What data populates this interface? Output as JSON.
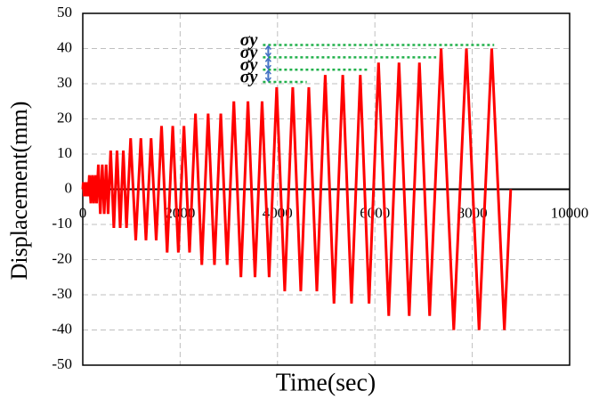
{
  "chart_data": {
    "type": "line",
    "x_label": "Time(sec)",
    "y_label": "Displacement(mm)",
    "x": [
      0,
      10,
      30,
      50,
      70,
      90,
      110,
      135,
      165,
      195,
      225,
      255,
      285,
      320,
      360,
      400,
      440,
      480,
      520,
      573,
      638,
      703,
      768,
      833,
      898,
      983,
      1088,
      1193,
      1298,
      1403,
      1508,
      1618,
      1733,
      1848,
      1963,
      2078,
      2193,
      2315,
      2445,
      2575,
      2705,
      2835,
      2965,
      3103,
      3248,
      3393,
      3538,
      3683,
      3828,
      3983,
      4148,
      4313,
      4478,
      4643,
      4808,
      4980,
      5160,
      5340,
      5520,
      5700,
      5880,
      6075,
      6285,
      6495,
      6705,
      6915,
      7125,
      7360,
      7620,
      7880,
      8140,
      8400,
      8660,
      8790
    ],
    "series": [
      {
        "color": "#ff0000",
        "values": [
          0,
          2,
          -2,
          2,
          -2,
          2,
          -2,
          4,
          -4,
          4,
          -4,
          4,
          -4,
          7,
          -7,
          7,
          -7,
          7,
          -7,
          11,
          -11,
          11,
          -11,
          11,
          -11,
          14.5,
          -14.5,
          14.5,
          -14.5,
          14.5,
          -14.5,
          18,
          -18,
          18,
          -18,
          18,
          -18,
          21.5,
          -21.5,
          21.5,
          -21.5,
          21.5,
          -21.5,
          25,
          -25,
          25,
          -25,
          25,
          -25,
          29,
          -29,
          29,
          -29,
          29,
          -29,
          32.5,
          -32.5,
          32.5,
          -32.5,
          32.5,
          -32.5,
          36,
          -36,
          36,
          -36,
          36,
          -36,
          40,
          -40,
          40,
          -40,
          40,
          -40,
          0
        ]
      }
    ],
    "xlim": [
      0,
      10000
    ],
    "xticks": [
      0,
      2000,
      4000,
      6000,
      8000,
      10000
    ],
    "ylim": [
      -50,
      50
    ],
    "yticks": [
      -50,
      -40,
      -30,
      -20,
      -10,
      0,
      10,
      20,
      30,
      40,
      50
    ],
    "grid": true,
    "annotations": {
      "color": "#22b14c",
      "arrow_color": "#4472c4",
      "lines": [
        {
          "label": "σy",
          "y": 41,
          "x": [
            3700,
            8450
          ]
        },
        {
          "label": "σy",
          "y": 37.5,
          "x": [
            3700,
            7260
          ]
        },
        {
          "label": "σy",
          "y": 34,
          "x": [
            3700,
            5890
          ]
        },
        {
          "label": "σy",
          "y": 30.5,
          "x": [
            3700,
            4600
          ]
        }
      ]
    }
  }
}
